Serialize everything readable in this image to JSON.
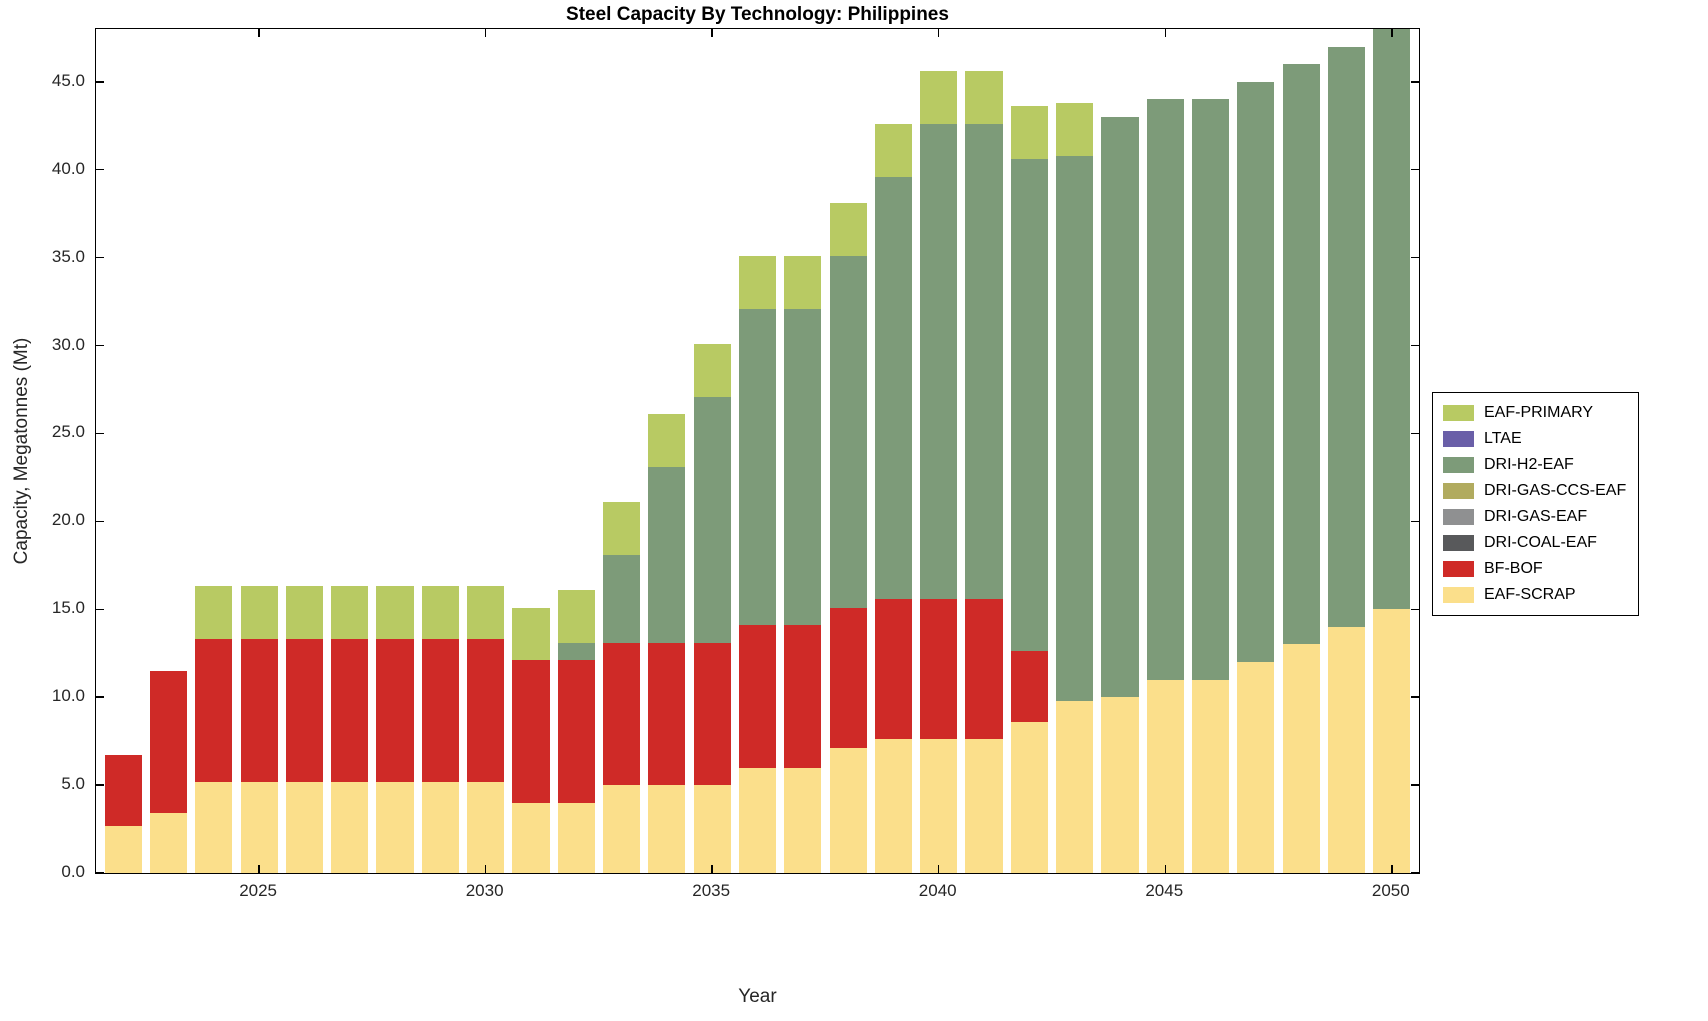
{
  "chart_data": {
    "type": "bar",
    "stacked": true,
    "title": "Steel Capacity By Technology: Philippines",
    "xlabel": "Year",
    "ylabel": "Capacity, Megatonnes (Mt)",
    "grid": false,
    "legend_position": "right-outside",
    "x": [
      2022,
      2023,
      2024,
      2025,
      2026,
      2027,
      2028,
      2029,
      2030,
      2031,
      2032,
      2033,
      2034,
      2035,
      2036,
      2037,
      2038,
      2039,
      2040,
      2041,
      2042,
      2043,
      2044,
      2045,
      2046,
      2047,
      2048,
      2049,
      2050
    ],
    "xlim": [
      2021.4,
      2050.6
    ],
    "ylim": [
      0,
      48
    ],
    "x_ticks": [
      2025,
      2030,
      2035,
      2040,
      2045,
      2050
    ],
    "x_tick_labels": [
      "2025",
      "2030",
      "2035",
      "2040",
      "2045",
      "2050"
    ],
    "y_ticks": [
      0,
      5,
      10,
      15,
      20,
      25,
      30,
      35,
      40,
      45
    ],
    "y_tick_labels": [
      "0.0",
      "5.0",
      "10.0",
      "15.0",
      "20.0",
      "25.0",
      "30.0",
      "35.0",
      "40.0",
      "45.0"
    ],
    "bar_width_fraction": 0.82,
    "series": [
      {
        "name": "EAF-SCRAP",
        "color": "#fbdf8b",
        "values": [
          2.7,
          3.4,
          5.2,
          5.2,
          5.2,
          5.2,
          5.2,
          5.2,
          5.2,
          4.0,
          4.0,
          5.0,
          5.0,
          5.0,
          6.0,
          6.0,
          7.1,
          7.6,
          7.6,
          7.6,
          8.6,
          9.8,
          10.0,
          11.0,
          11.0,
          12.0,
          13.0,
          14.0,
          15.0
        ]
      },
      {
        "name": "BF-BOF",
        "color": "#cf2a27",
        "values": [
          4.0,
          8.1,
          8.1,
          8.1,
          8.1,
          8.1,
          8.1,
          8.1,
          8.1,
          8.1,
          8.1,
          8.1,
          8.1,
          8.1,
          8.1,
          8.1,
          8.0,
          8.0,
          8.0,
          8.0,
          4.0,
          0,
          0,
          0,
          0,
          0,
          0,
          0,
          0
        ]
      },
      {
        "name": "DRI-COAL-EAF",
        "color": "#58595b",
        "values": [
          0,
          0,
          0,
          0,
          0,
          0,
          0,
          0,
          0,
          0,
          0,
          0,
          0,
          0,
          0,
          0,
          0,
          0,
          0,
          0,
          0,
          0,
          0,
          0,
          0,
          0,
          0,
          0,
          0
        ]
      },
      {
        "name": "DRI-GAS-EAF",
        "color": "#8f9091",
        "values": [
          0,
          0,
          0,
          0,
          0,
          0,
          0,
          0,
          0,
          0,
          0,
          0,
          0,
          0,
          0,
          0,
          0,
          0,
          0,
          0,
          0,
          0,
          0,
          0,
          0,
          0,
          0,
          0,
          0
        ]
      },
      {
        "name": "DRI-GAS-CCS-EAF",
        "color": "#b1ab5f",
        "values": [
          0,
          0,
          0,
          0,
          0,
          0,
          0,
          0,
          0,
          0,
          0,
          0,
          0,
          0,
          0,
          0,
          0,
          0,
          0,
          0,
          0,
          0,
          0,
          0,
          0,
          0,
          0,
          0,
          0
        ]
      },
      {
        "name": "DRI-H2-EAF",
        "color": "#7d9b79",
        "values": [
          0,
          0,
          0,
          0,
          0,
          0,
          0,
          0,
          0,
          0,
          1.0,
          5.0,
          10.0,
          14.0,
          18.0,
          18.0,
          20.0,
          24.0,
          27.0,
          27.0,
          28.0,
          31.0,
          33.0,
          33.0,
          33.0,
          33.0,
          33.0,
          33.0,
          33.0
        ]
      },
      {
        "name": "LTAE",
        "color": "#6a5fa8",
        "values": [
          0,
          0,
          0,
          0,
          0,
          0,
          0,
          0,
          0,
          0,
          0,
          0,
          0,
          0,
          0,
          0,
          0,
          0,
          0,
          0,
          0,
          0,
          0,
          0,
          0,
          0,
          0,
          0,
          0
        ]
      },
      {
        "name": "EAF-PRIMARY",
        "color": "#b8ca63",
        "values": [
          0,
          0,
          3.0,
          3.0,
          3.0,
          3.0,
          3.0,
          3.0,
          3.0,
          3.0,
          3.0,
          3.0,
          3.0,
          3.0,
          3.0,
          3.0,
          3.0,
          3.0,
          3.0,
          3.0,
          3.0,
          3.0,
          0,
          0,
          0,
          0,
          0,
          0,
          0
        ]
      }
    ],
    "legend_order": [
      "EAF-PRIMARY",
      "LTAE",
      "DRI-H2-EAF",
      "DRI-GAS-CCS-EAF",
      "DRI-GAS-EAF",
      "DRI-COAL-EAF",
      "BF-BOF",
      "EAF-SCRAP"
    ]
  }
}
